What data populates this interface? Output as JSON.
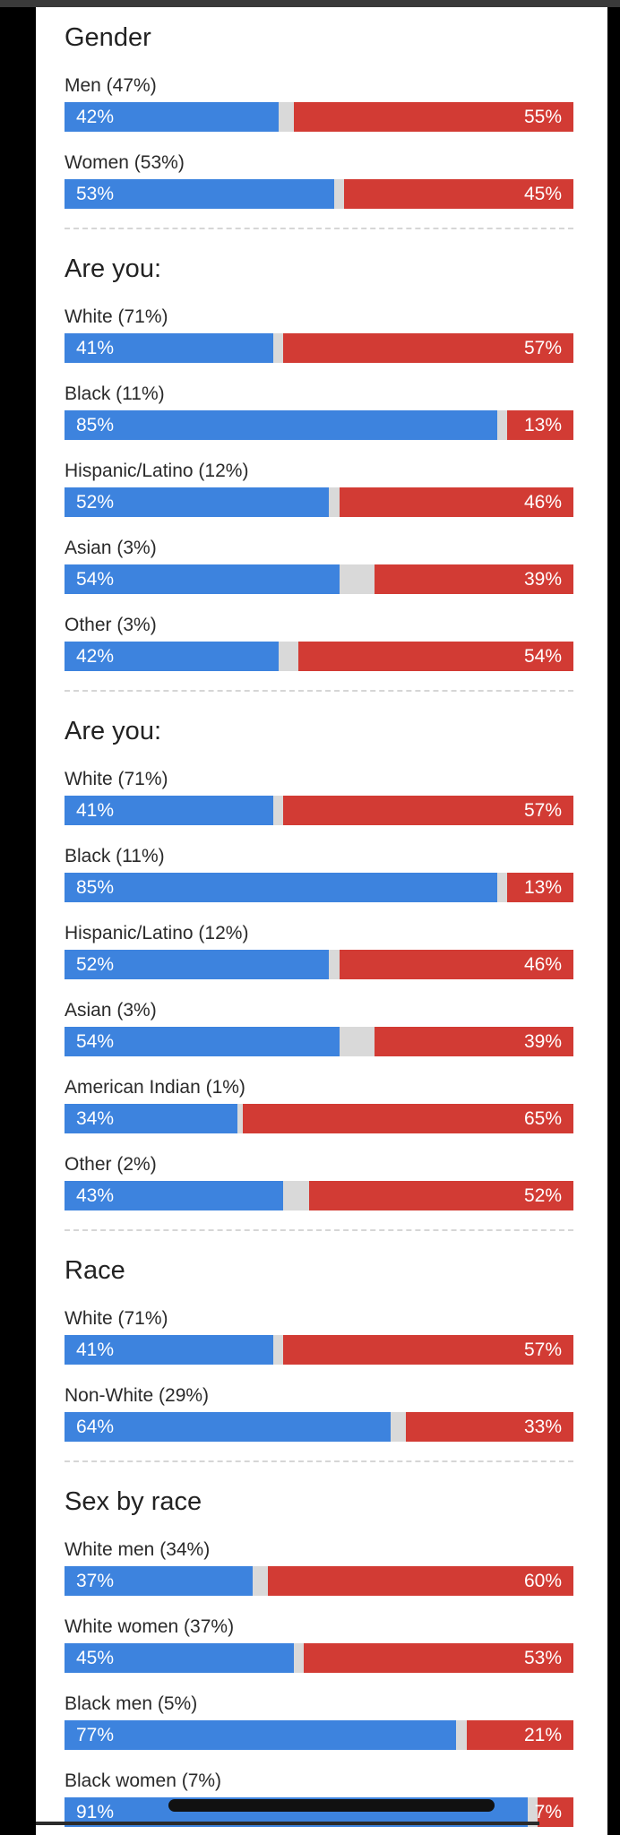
{
  "colors": {
    "dem": "#3d83de",
    "rep": "#d23b34",
    "other": "#d9d9d9"
  },
  "sections": [
    {
      "title": "Gender",
      "rows": [
        {
          "label": "Men (47%)",
          "dem": 42,
          "rep": 55,
          "dem_label": "42%",
          "rep_label": "55%"
        },
        {
          "label": "Women (53%)",
          "dem": 53,
          "rep": 45,
          "dem_label": "53%",
          "rep_label": "45%"
        }
      ]
    },
    {
      "title": "Are you:",
      "rows": [
        {
          "label": "White (71%)",
          "dem": 41,
          "rep": 57,
          "dem_label": "41%",
          "rep_label": "57%"
        },
        {
          "label": "Black (11%)",
          "dem": 85,
          "rep": 13,
          "dem_label": "85%",
          "rep_label": "13%"
        },
        {
          "label": "Hispanic/Latino (12%)",
          "dem": 52,
          "rep": 46,
          "dem_label": "52%",
          "rep_label": "46%"
        },
        {
          "label": "Asian (3%)",
          "dem": 54,
          "rep": 39,
          "dem_label": "54%",
          "rep_label": "39%"
        },
        {
          "label": "Other (3%)",
          "dem": 42,
          "rep": 54,
          "dem_label": "42%",
          "rep_label": "54%"
        }
      ]
    },
    {
      "title": "Are you:",
      "rows": [
        {
          "label": "White (71%)",
          "dem": 41,
          "rep": 57,
          "dem_label": "41%",
          "rep_label": "57%"
        },
        {
          "label": "Black (11%)",
          "dem": 85,
          "rep": 13,
          "dem_label": "85%",
          "rep_label": "13%"
        },
        {
          "label": "Hispanic/Latino (12%)",
          "dem": 52,
          "rep": 46,
          "dem_label": "52%",
          "rep_label": "46%"
        },
        {
          "label": "Asian (3%)",
          "dem": 54,
          "rep": 39,
          "dem_label": "54%",
          "rep_label": "39%"
        },
        {
          "label": "American Indian (1%)",
          "dem": 34,
          "rep": 65,
          "dem_label": "34%",
          "rep_label": "65%"
        },
        {
          "label": "Other (2%)",
          "dem": 43,
          "rep": 52,
          "dem_label": "43%",
          "rep_label": "52%"
        }
      ]
    },
    {
      "title": "Race",
      "rows": [
        {
          "label": "White (71%)",
          "dem": 41,
          "rep": 57,
          "dem_label": "41%",
          "rep_label": "57%"
        },
        {
          "label": "Non-White (29%)",
          "dem": 64,
          "rep": 33,
          "dem_label": "64%",
          "rep_label": "33%"
        }
      ]
    },
    {
      "title": "Sex by race",
      "rows": [
        {
          "label": "White men (34%)",
          "dem": 37,
          "rep": 60,
          "dem_label": "37%",
          "rep_label": "60%"
        },
        {
          "label": "White women (37%)",
          "dem": 45,
          "rep": 53,
          "dem_label": "45%",
          "rep_label": "53%"
        },
        {
          "label": "Black men (5%)",
          "dem": 77,
          "rep": 21,
          "dem_label": "77%",
          "rep_label": "21%"
        },
        {
          "label": "Black women (7%)",
          "dem": 91,
          "rep": 7,
          "dem_label": "91%",
          "rep_label": "7%"
        }
      ]
    }
  ]
}
